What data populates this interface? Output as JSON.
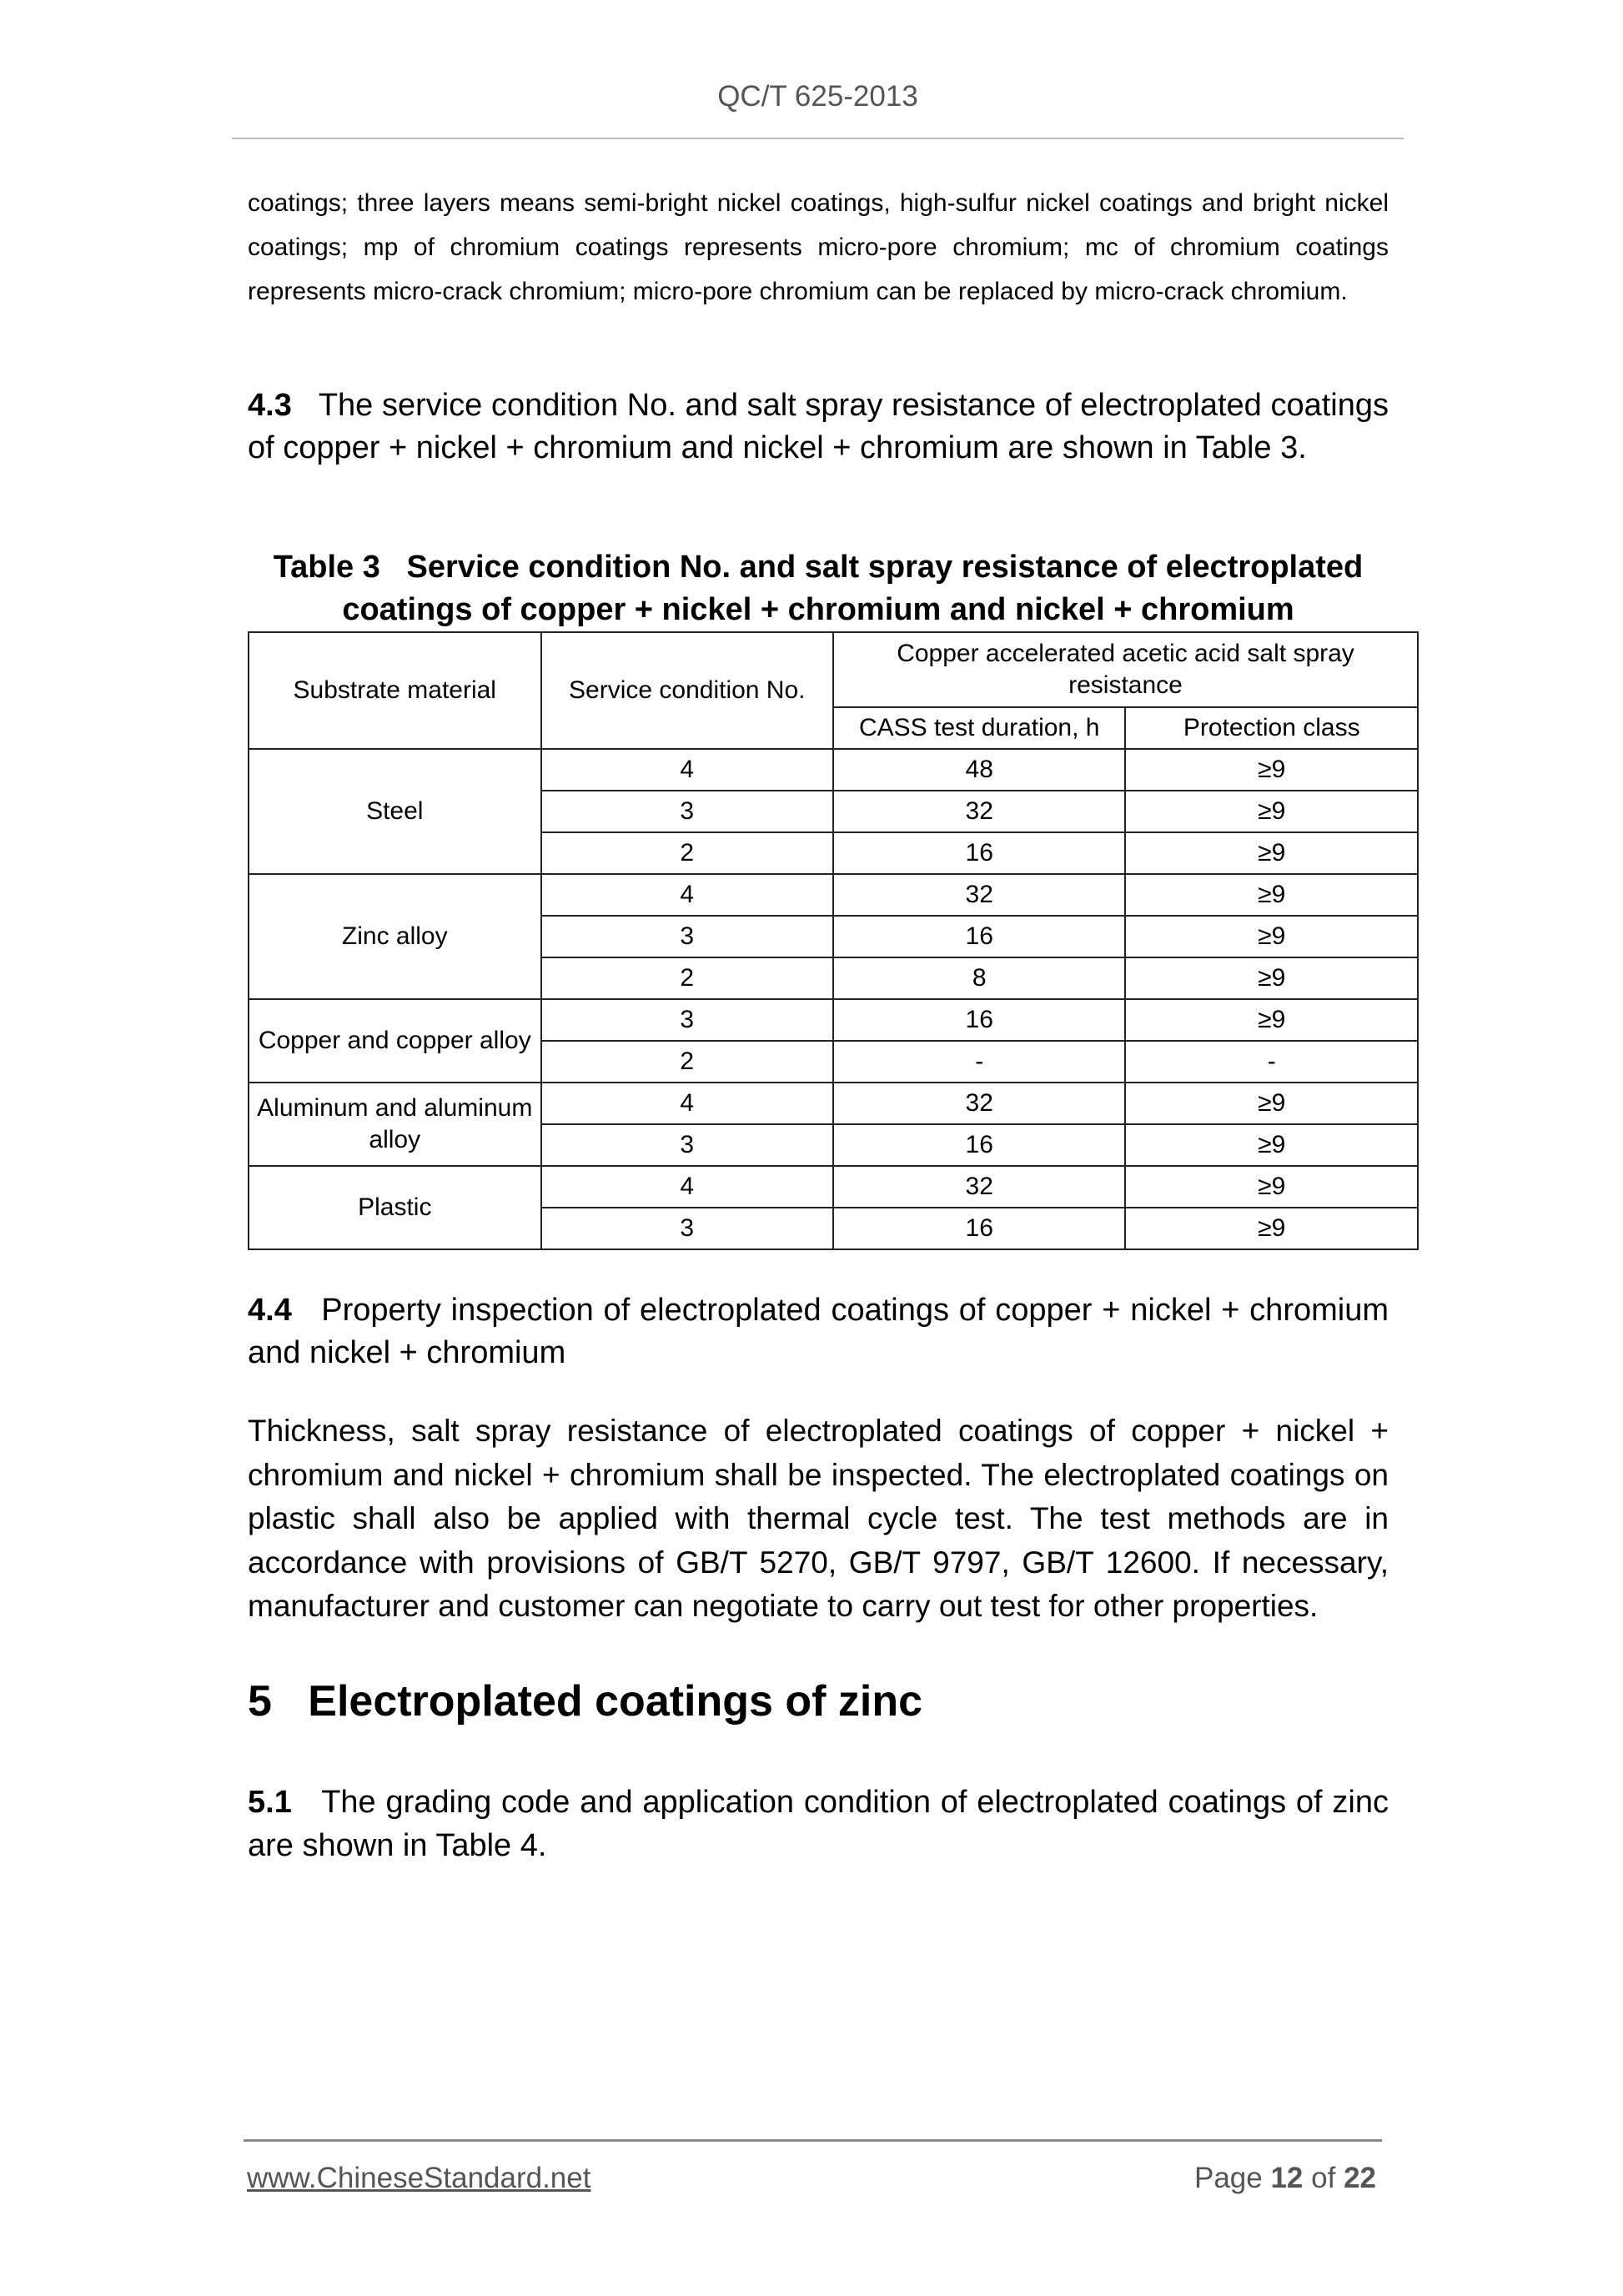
{
  "header": {
    "doc_code": "QC/T 625-2013"
  },
  "paragraphs": {
    "intro": "coatings; three layers means semi-bright nickel coatings, high-sulfur nickel coatings and bright nickel coatings; mp of chromium coatings represents micro-pore chromium; mc of chromium coatings represents micro-crack chromium; micro-pore chromium can be replaced by micro-crack chromium.",
    "s43_num": "4.3",
    "s43_text": "The service condition No. and salt spray resistance of electroplated coatings of copper + nickel + chromium and nickel + chromium are shown in Table 3.",
    "s44_num": "4.4",
    "s44_text": "Property inspection of electroplated coatings of copper + nickel + chromium and nickel + chromium",
    "s44_body": "Thickness, salt spray resistance of electroplated coatings of copper + nickel + chromium and nickel + chromium shall be inspected. The electroplated coatings on plastic shall also be applied with thermal cycle test. The test methods are in accordance with provisions of GB/T 5270, GB/T 9797, GB/T 12600. If necessary, manufacturer and customer can negotiate to carry out test for other properties.",
    "h5_num": "5",
    "h5_text": "Electroplated coatings of zinc",
    "s51_num": "5.1",
    "s51_text": "The grading code and application condition of electroplated coatings of zinc are shown in Table 4."
  },
  "table": {
    "caption_num": "Table 3",
    "caption": "Service condition No. and salt spray resistance of electroplated coatings of copper + nickel + chromium and nickel + chromium",
    "headers": {
      "substrate": "Substrate material",
      "service": "Service condition No.",
      "group": "Copper accelerated acetic acid salt spray resistance",
      "duration": "CASS test duration, h",
      "protection": "Protection class"
    },
    "groups": [
      {
        "material": "Steel",
        "rows": [
          [
            "4",
            "48",
            "≥9"
          ],
          [
            "3",
            "32",
            "≥9"
          ],
          [
            "2",
            "16",
            "≥9"
          ]
        ]
      },
      {
        "material": "Zinc alloy",
        "rows": [
          [
            "4",
            "32",
            "≥9"
          ],
          [
            "3",
            "16",
            "≥9"
          ],
          [
            "2",
            "8",
            "≥9"
          ]
        ]
      },
      {
        "material": "Copper and copper alloy",
        "rows": [
          [
            "3",
            "16",
            "≥9"
          ],
          [
            "2",
            "-",
            "-"
          ]
        ]
      },
      {
        "material": "Aluminum and aluminum alloy",
        "rows": [
          [
            "4",
            "32",
            "≥9"
          ],
          [
            "3",
            "16",
            "≥9"
          ]
        ]
      },
      {
        "material": "Plastic",
        "rows": [
          [
            "4",
            "32",
            "≥9"
          ],
          [
            "3",
            "16",
            "≥9"
          ]
        ]
      }
    ]
  },
  "footer": {
    "website": "www.ChineseStandard.net",
    "page_prefix": "Page",
    "page": "12",
    "of": "of",
    "total": "22"
  }
}
